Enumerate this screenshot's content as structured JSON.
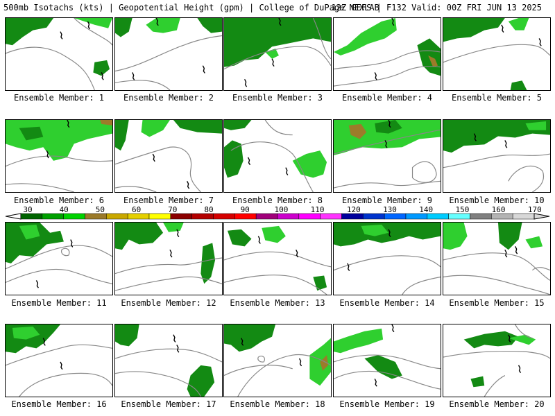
{
  "header": {
    "title_left": "500mb Isotachs (kts) | Geopotential Height (gpm) | College of DuPage NEXLAB",
    "title_right": "12Z GEFS | F132 Valid: 00Z FRI JUN 13 2025"
  },
  "colorbar": {
    "ticks": [
      "30",
      "40",
      "50",
      "60",
      "70",
      "80",
      "90",
      "100",
      "110",
      "120",
      "130",
      "140",
      "150",
      "160",
      "170"
    ],
    "colors": [
      "#006400",
      "#00a000",
      "#00d200",
      "#9b7a2a",
      "#c9a800",
      "#e5d000",
      "#ffff00",
      "#8b0000",
      "#b30000",
      "#d40000",
      "#ff0000",
      "#a0007a",
      "#cc00cc",
      "#ff00ff",
      "#ff33ff",
      "#00009c",
      "#0033cc",
      "#0066ff",
      "#0099ff",
      "#00ccff",
      "#66ffff",
      "#808080",
      "#b4b4b4",
      "#d8d8d8"
    ]
  },
  "members": [
    {
      "label": "Ensemble Member: 1"
    },
    {
      "label": "Ensemble Member: 2"
    },
    {
      "label": "Ensemble Member: 3"
    },
    {
      "label": "Ensemble Member: 4"
    },
    {
      "label": "Ensemble Member: 5"
    },
    {
      "label": "Ensemble Member: 6"
    },
    {
      "label": "Ensemble Member: 7"
    },
    {
      "label": "Ensemble Member: 8"
    },
    {
      "label": "Ensemble Member: 9"
    },
    {
      "label": "Ensemble Member: 10"
    },
    {
      "label": "Ensemble Member: 11"
    },
    {
      "label": "Ensemble Member: 12"
    },
    {
      "label": "Ensemble Member: 13"
    },
    {
      "label": "Ensemble Member: 14"
    },
    {
      "label": "Ensemble Member: 15"
    },
    {
      "label": "Ensemble Member: 16"
    },
    {
      "label": "Ensemble Member: 17"
    },
    {
      "label": "Ensemble Member: 18"
    },
    {
      "label": "Ensemble Member: 19"
    },
    {
      "label": "Ensemble Member: 20"
    }
  ]
}
